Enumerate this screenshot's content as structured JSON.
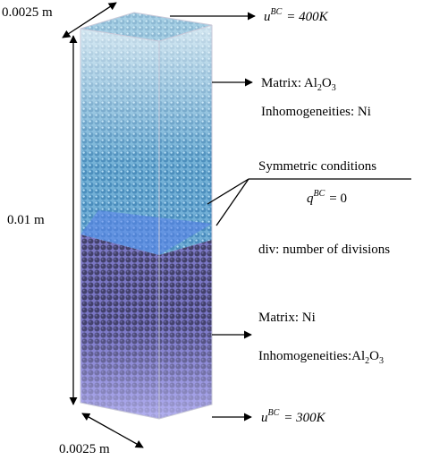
{
  "dimensions": {
    "top_width": "0.0025 m",
    "height": "0.01 m",
    "bottom_width": "0.0025 m"
  },
  "boundary_top": {
    "symbol": "u",
    "superscript": "BC",
    "rest": "= 400K"
  },
  "upper_region": {
    "matrix": [
      "Matrix: Al",
      "2",
      "O",
      "3"
    ],
    "inhomogeneities": "Inhomogeneities: Ni"
  },
  "symmetric": {
    "title": "Symmetric conditions",
    "symbol": "q",
    "superscript": "BC",
    "rest": "= 0"
  },
  "div_note": "div: number of divisions",
  "lower_region": {
    "matrix": "Matrix: Ni",
    "inhomogeneities": [
      "Inhomogeneities:Al",
      "2",
      "O",
      "3"
    ]
  },
  "boundary_bottom": {
    "symbol": "u",
    "superscript": "BC",
    "rest": "= 300K"
  }
}
